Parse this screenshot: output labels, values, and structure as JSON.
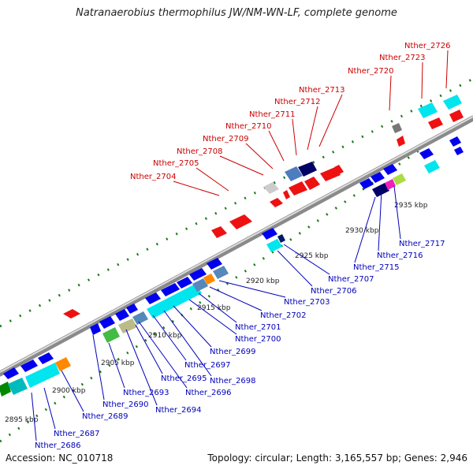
{
  "title": "Natranaerobius thermophilus JW/NM-WN-LF, complete genome",
  "footer": {
    "accession": "Accession: NC_010718",
    "topology": "Topology: circular; Length: 3,165,557 bp; Genes: 2,946"
  },
  "colors": {
    "forward_label": "#cc0000",
    "reverse_label": "#0000bb",
    "backbone": "#999999",
    "tick": "#1a7a1a"
  },
  "kbp_labels": [
    "2895 kbp",
    "2900 kbp",
    "2905 kbp",
    "2910 kbp",
    "2915 kbp",
    "2920 kbp",
    "2925 kbp",
    "2930 kbp",
    "2935 kbp"
  ],
  "forward_gene_labels": [
    "Nther_2704",
    "Nther_2705",
    "Nther_2708",
    "Nther_2709",
    "Nther_2710",
    "Nther_2711",
    "Nther_2712",
    "Nther_2713",
    "Nther_2720",
    "Nther_2723",
    "Nther_2726"
  ],
  "reverse_gene_labels": [
    "Nther_2686",
    "Nther_2687",
    "Nther_2689",
    "Nther_2690",
    "Nther_2693",
    "Nther_2694",
    "Nther_2695",
    "Nther_2696",
    "Nther_2697",
    "Nther_2698",
    "Nther_2699",
    "Nther_2700",
    "Nther_2701",
    "Nther_2702",
    "Nther_2703",
    "Nther_2706",
    "Nther_2707",
    "Nther_2715",
    "Nther_2716",
    "Nther_2717"
  ]
}
